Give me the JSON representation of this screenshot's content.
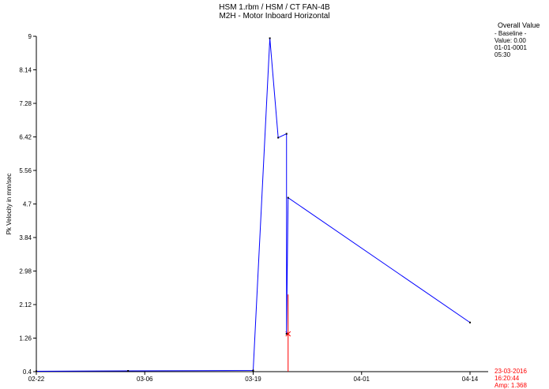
{
  "chart_data": {
    "type": "line",
    "title": "HSM 1.rbm / HSM / CT FAN-4B",
    "subtitle": "M2H - Motor Inboard Horizontal",
    "xlabel": "",
    "ylabel": "Pk Velocity in mm/sec",
    "ylim": [
      0.4,
      9
    ],
    "y_ticks": [
      "0.4",
      "1.26",
      "2.12",
      "2.98",
      "3.84",
      "4.7",
      "5.56",
      "6.42",
      "7.28",
      "8.14",
      "9"
    ],
    "x_ticks": [
      "02-22",
      "03-06",
      "03-19",
      "04-01",
      "04-14"
    ],
    "grid": false,
    "series": [
      {
        "color": "#0000ff",
        "points": [
          {
            "x": "02-22",
            "y": 0.41
          },
          {
            "x": "03-04",
            "y": 0.42
          },
          {
            "x": "03-19",
            "y": 0.43
          },
          {
            "x": "03-21",
            "y": 8.95
          },
          {
            "x": "03-22",
            "y": 6.4
          },
          {
            "x": "03-23",
            "y": 6.5
          },
          {
            "x": "03-23",
            "y": 1.37
          },
          {
            "x": "03-23",
            "y": 4.86
          },
          {
            "x": "04-14",
            "y": 1.66
          }
        ]
      }
    ],
    "cursor": {
      "x": "03-23",
      "y": 1.368,
      "color": "#ff0000"
    }
  },
  "overall_panel": {
    "heading": "Overall Value",
    "lines": [
      "- Baseline -",
      "Value: 0.00",
      "01-01-0001",
      "05:30"
    ]
  },
  "cursor_readout": {
    "date": "23-03-2016",
    "time": "16:20:44",
    "amp": "Amp: 1.368"
  }
}
